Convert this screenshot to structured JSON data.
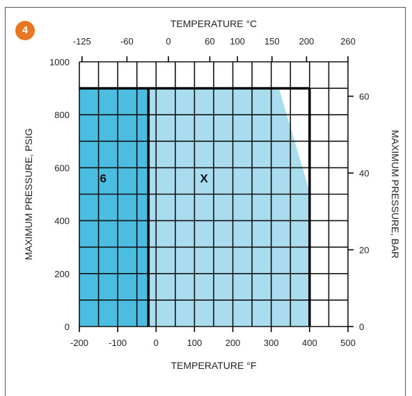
{
  "badge": "4",
  "colors": {
    "region_6": "#4bbde0",
    "region_x": "#a8dcee",
    "grid": "#111111",
    "badge": "#e87722"
  },
  "chart_data": {
    "type": "area",
    "title": "",
    "x_bottom": {
      "label": "TEMPERATURE °F",
      "range": [
        -200,
        500
      ],
      "ticks": [
        -200,
        -100,
        0,
        100,
        200,
        300,
        400,
        500
      ],
      "tick_labels": [
        "-200",
        "-100",
        "0",
        "100",
        "200",
        "300",
        "400",
        "500"
      ]
    },
    "x_top": {
      "label": "TEMPERATURE °C",
      "ticks_f": [
        -193,
        -76,
        32,
        140,
        212,
        302,
        392,
        500
      ],
      "tick_labels": [
        "-125",
        "-60",
        "0",
        "60",
        "100",
        "150",
        "200",
        "260"
      ]
    },
    "y_left": {
      "label": "MAXIMUM PRESSURE, PSIG",
      "range": [
        0,
        1000
      ],
      "ticks": [
        0,
        200,
        400,
        600,
        800,
        1000
      ],
      "tick_labels": [
        "0",
        "200",
        "400",
        "600",
        "800",
        "1000"
      ]
    },
    "y_right": {
      "label": "MAXIMUM PRESSURE, BAR",
      "ticks_psig": [
        0,
        290,
        580,
        870
      ],
      "tick_labels": [
        "0",
        "20",
        "40",
        "60"
      ]
    },
    "grid": true,
    "regions": [
      {
        "name": "6",
        "points": [
          [
            -200,
            0
          ],
          [
            -200,
            900
          ],
          [
            -20,
            900
          ],
          [
            -20,
            0
          ]
        ]
      },
      {
        "name": "X",
        "points": [
          [
            -20,
            0
          ],
          [
            -20,
            900
          ],
          [
            320,
            900
          ],
          [
            400,
            510
          ],
          [
            400,
            0
          ]
        ]
      }
    ],
    "region_labels": [
      {
        "text": "6",
        "x": -138,
        "y": 560
      },
      {
        "text": "X",
        "x": 125,
        "y": 560
      }
    ]
  }
}
